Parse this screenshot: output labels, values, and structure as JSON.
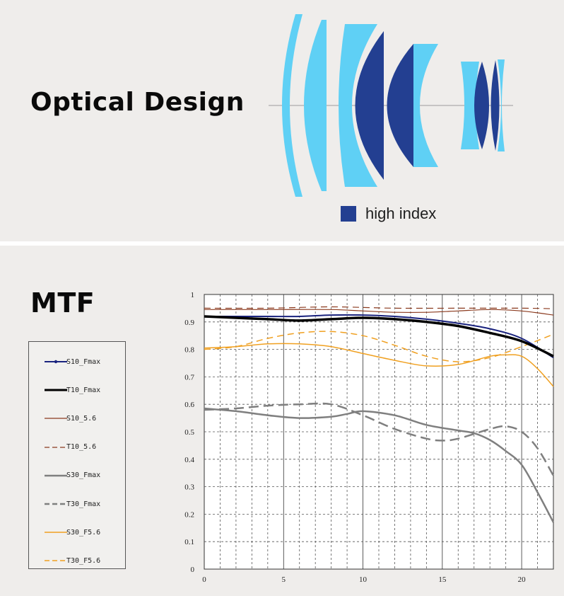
{
  "optical": {
    "title": "Optical Design",
    "legend_label": "high index",
    "colors": {
      "standard_glass": "#5fd0f5",
      "high_index_glass": "#233f91"
    }
  },
  "mtf": {
    "title": "MTF"
  },
  "chart_data": {
    "type": "line",
    "title": "",
    "xlabel": "",
    "ylabel": "",
    "xlim": [
      0,
      22
    ],
    "ylim": [
      0,
      1
    ],
    "x_ticks": [
      0,
      5,
      10,
      15,
      20
    ],
    "y_ticks": [
      0,
      0.1,
      0.2,
      0.3,
      0.4,
      0.5,
      0.6,
      0.7,
      0.8,
      0.9,
      1
    ],
    "grid": true,
    "legend_position": "left-outside",
    "series": [
      {
        "name": "S10_Fmax",
        "color": "#1a237e",
        "dash": "solid",
        "width": 2,
        "x": [
          0,
          2,
          4,
          6,
          8,
          10,
          12,
          14,
          16,
          18,
          20,
          22
        ],
        "y": [
          0.92,
          0.92,
          0.92,
          0.92,
          0.925,
          0.925,
          0.92,
          0.91,
          0.895,
          0.875,
          0.84,
          0.77
        ]
      },
      {
        "name": "T10_Fmax",
        "color": "#000000",
        "dash": "solid",
        "width": 3.5,
        "x": [
          0,
          2,
          4,
          6,
          8,
          10,
          12,
          14,
          16,
          18,
          20,
          22
        ],
        "y": [
          0.92,
          0.915,
          0.91,
          0.905,
          0.91,
          0.915,
          0.91,
          0.9,
          0.885,
          0.86,
          0.83,
          0.775
        ]
      },
      {
        "name": "S10_5.6",
        "color": "#8b3a1e",
        "dash": "solid",
        "width": 1.2,
        "x": [
          0,
          4,
          8,
          10,
          12,
          14,
          16,
          18,
          20,
          22
        ],
        "y": [
          0.945,
          0.945,
          0.945,
          0.94,
          0.935,
          0.935,
          0.94,
          0.945,
          0.94,
          0.925
        ]
      },
      {
        "name": "T10_5.6",
        "color": "#8b3a1e",
        "dash": "dash",
        "width": 1.2,
        "x": [
          0,
          4,
          8,
          12,
          16,
          20,
          22
        ],
        "y": [
          0.95,
          0.95,
          0.955,
          0.95,
          0.95,
          0.95,
          0.948
        ]
      },
      {
        "name": "S30_Fmax",
        "color": "#7f7f7f",
        "dash": "solid",
        "width": 2.5,
        "x": [
          0,
          2,
          4,
          6,
          8,
          9,
          10,
          12,
          14,
          16,
          17,
          18,
          19,
          20,
          21,
          22
        ],
        "y": [
          0.585,
          0.575,
          0.56,
          0.55,
          0.555,
          0.565,
          0.575,
          0.56,
          0.525,
          0.505,
          0.495,
          0.47,
          0.43,
          0.38,
          0.28,
          0.17
        ]
      },
      {
        "name": "T30_Fmax",
        "color": "#7f7f7f",
        "dash": "dash",
        "width": 2.5,
        "x": [
          0,
          2,
          4,
          6,
          8,
          10,
          12,
          14,
          15,
          16,
          18,
          19,
          20,
          21,
          22
        ],
        "y": [
          0.58,
          0.585,
          0.595,
          0.6,
          0.6,
          0.56,
          0.51,
          0.475,
          0.468,
          0.475,
          0.51,
          0.52,
          0.5,
          0.44,
          0.34
        ]
      },
      {
        "name": "S30_F5.6",
        "color": "#f0a020",
        "dash": "solid",
        "width": 1.5,
        "x": [
          0,
          2,
          4,
          6,
          8,
          10,
          12,
          14,
          16,
          18,
          19,
          20,
          21,
          22
        ],
        "y": [
          0.805,
          0.81,
          0.82,
          0.82,
          0.81,
          0.785,
          0.76,
          0.74,
          0.745,
          0.775,
          0.78,
          0.775,
          0.73,
          0.665
        ]
      },
      {
        "name": "T30_F5.6",
        "color": "#f0a020",
        "dash": "dash",
        "width": 1.5,
        "x": [
          0,
          2,
          4,
          6,
          8,
          10,
          12,
          14,
          16,
          18,
          20,
          22
        ],
        "y": [
          0.8,
          0.81,
          0.84,
          0.86,
          0.865,
          0.85,
          0.815,
          0.775,
          0.755,
          0.77,
          0.81,
          0.855
        ]
      }
    ]
  }
}
